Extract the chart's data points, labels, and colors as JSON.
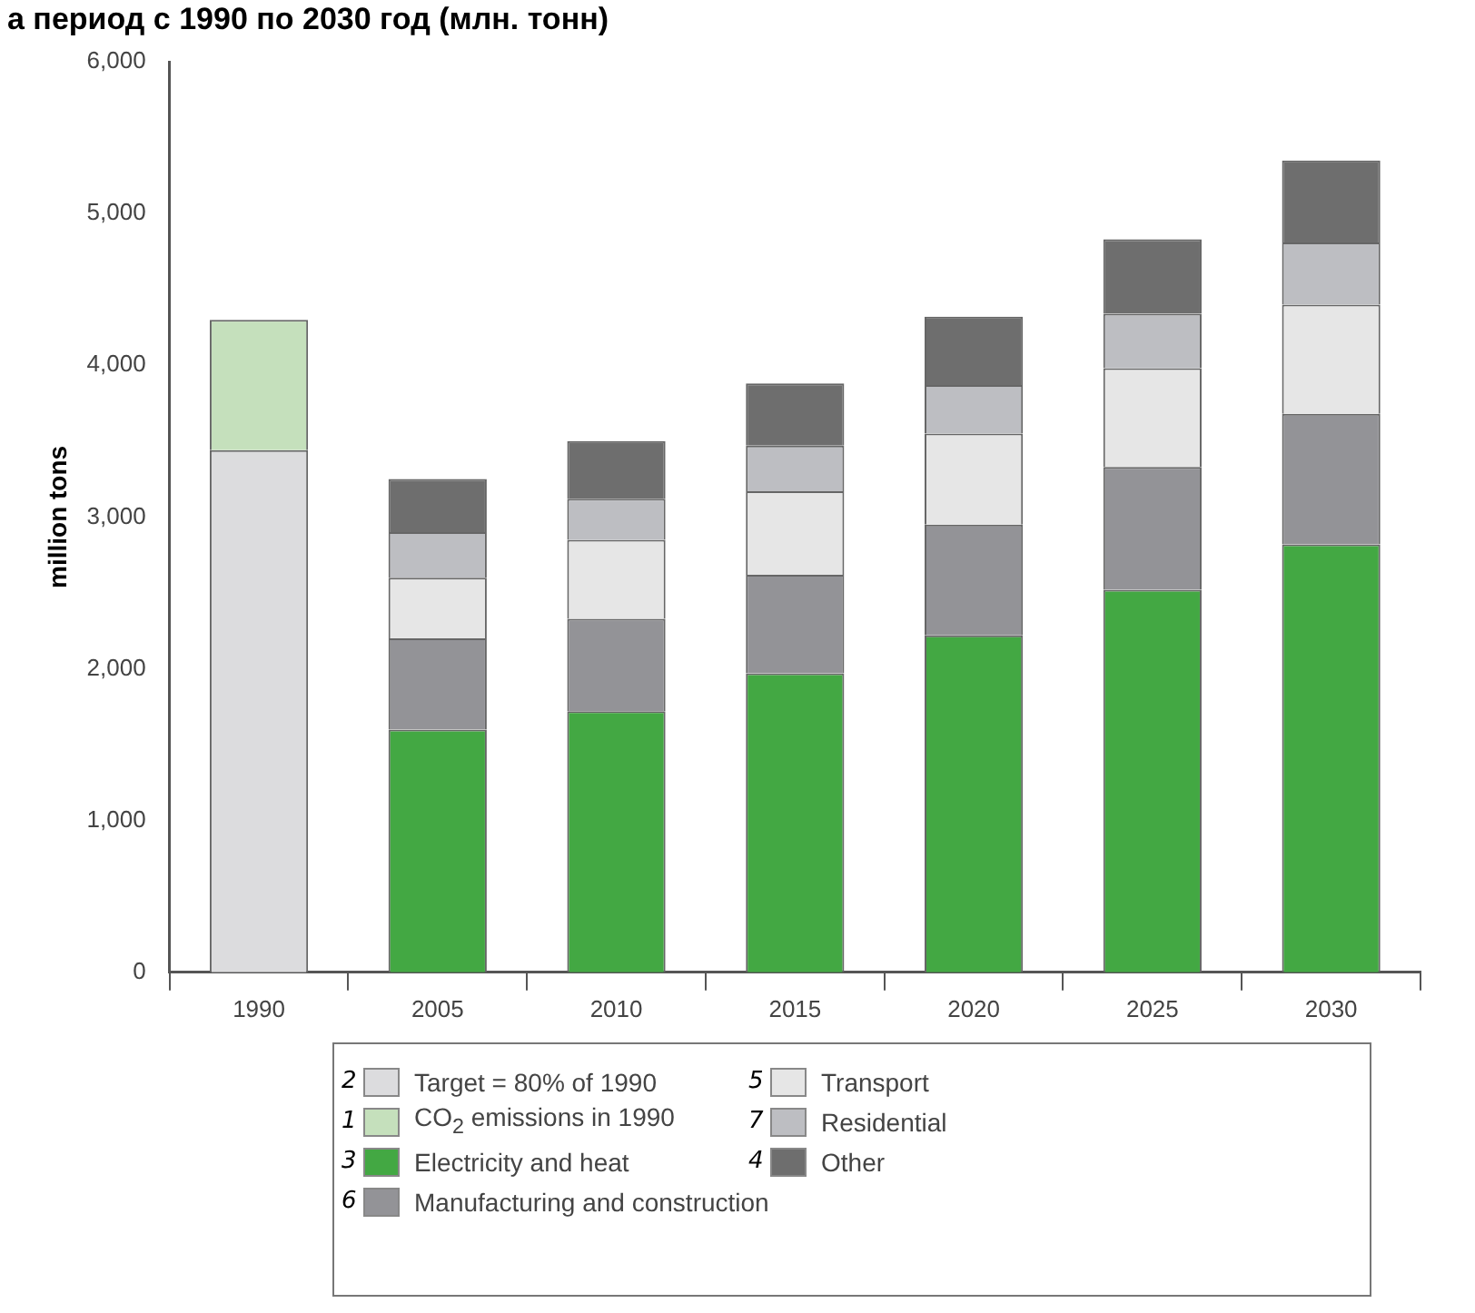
{
  "chart_data": {
    "type": "bar",
    "title": "а период с 1990 по 2030 год (млн. тонн)",
    "ylabel": "million tons",
    "categories": [
      "1990",
      "2005",
      "2010",
      "2015",
      "2020",
      "2025",
      "2030"
    ],
    "stacked": true,
    "series": [
      {
        "name": "Target = 80% of 1990",
        "color": "#dcdcde",
        "values": [
          3440,
          null,
          null,
          null,
          null,
          null,
          null
        ]
      },
      {
        "name": "CO$_{2}$ emissions in 1990",
        "color": "#c5e0bc",
        "values": [
          860,
          null,
          null,
          null,
          null,
          null,
          null
        ]
      },
      {
        "name": "Electricity and heat",
        "color": "#43a843",
        "values": [
          null,
          1600,
          1720,
          1970,
          2220,
          2520,
          2820
        ]
      },
      {
        "name": "Manufacturing and construction",
        "color": "#939397",
        "values": [
          null,
          600,
          610,
          650,
          730,
          810,
          860
        ]
      },
      {
        "name": "Transport",
        "color": "#e6e6e6",
        "values": [
          null,
          400,
          520,
          550,
          600,
          650,
          720
        ]
      },
      {
        "name": "Residential",
        "color": "#bdbec2",
        "values": [
          null,
          300,
          270,
          300,
          320,
          360,
          410
        ]
      },
      {
        "name": "Other",
        "color": "#6e6e6e",
        "values": [
          null,
          350,
          380,
          410,
          450,
          490,
          540
        ]
      }
    ],
    "annotations": [
      "2",
      "1",
      "3",
      "6",
      "5",
      "7",
      "4"
    ],
    "ylim": [
      0,
      6000
    ],
    "yticks": [
      0,
      {
        "value": 1000,
        "label": "1,000"
      },
      {
        "value": 2000,
        "label": "2,000"
      },
      {
        "value": 3000,
        "label": "3,000"
      },
      {
        "value": 4000,
        "label": "4,000"
      },
      {
        "value": 5000,
        "label": "5,000"
      },
      {
        "value": 6000,
        "label": "6,000"
      }
    ],
    "grid": false,
    "legend": "bottom"
  }
}
